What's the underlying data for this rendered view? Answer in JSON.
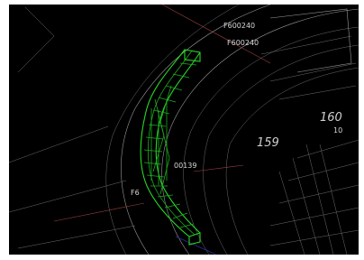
{
  "annotations": [
    "F600240",
    "F600240",
    "160",
    "10",
    "159",
    "00139",
    "F6"
  ]
}
